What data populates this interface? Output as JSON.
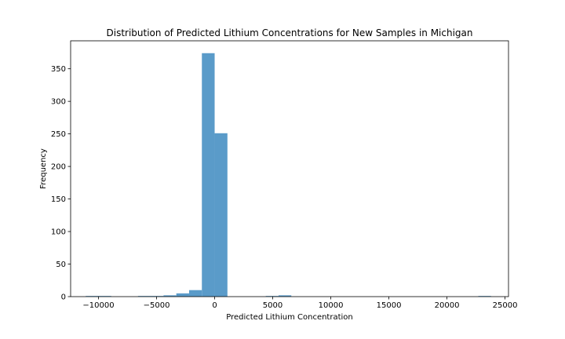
{
  "chart_data": {
    "type": "bar",
    "title": "Distribution of Predicted Lithium Concentrations for New Samples in Michigan",
    "xlabel": "Predicted Lithium Concentration",
    "ylabel": "Frequency",
    "xlim": [
      -12400,
      25300
    ],
    "ylim": [
      0,
      393
    ],
    "xticks": [
      -10000,
      -5000,
      0,
      5000,
      10000,
      15000,
      20000,
      25000
    ],
    "yticks": [
      0,
      50,
      100,
      150,
      200,
      250,
      300,
      350
    ],
    "bar_color": "#5a9bc9",
    "bins": [
      {
        "x0": -11100,
        "x1": -10000,
        "count": 1
      },
      {
        "x0": -10000,
        "x1": -8900,
        "count": 1
      },
      {
        "x0": -6600,
        "x1": -5500,
        "count": 1
      },
      {
        "x0": -5500,
        "x1": -4400,
        "count": 1
      },
      {
        "x0": -4400,
        "x1": -3300,
        "count": 2
      },
      {
        "x0": -3300,
        "x1": -2200,
        "count": 5
      },
      {
        "x0": -2200,
        "x1": -1100,
        "count": 10
      },
      {
        "x0": -1100,
        "x1": 0,
        "count": 374
      },
      {
        "x0": 0,
        "x1": 1100,
        "count": 251
      },
      {
        "x0": 4400,
        "x1": 5500,
        "count": 1
      },
      {
        "x0": 5500,
        "x1": 6600,
        "count": 2
      },
      {
        "x0": 22700,
        "x1": 23800,
        "count": 1
      }
    ]
  }
}
